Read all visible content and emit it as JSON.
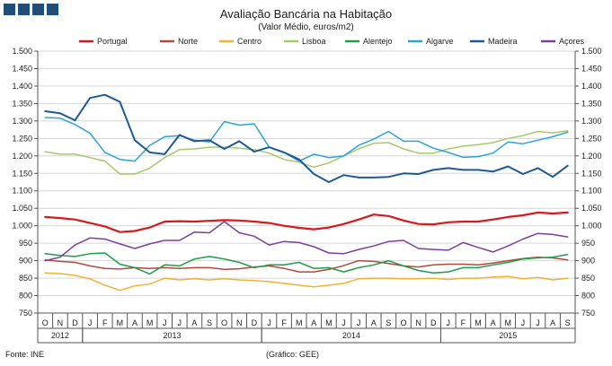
{
  "header": {
    "title": "Avaliação Bancária na Habitação",
    "subtitle": "(Valor Médio, euros/m2)"
  },
  "footer": {
    "source": "Fonte: INE",
    "credit": "(Gráfico: GEE)"
  },
  "chart_data": {
    "type": "line",
    "title": "Avaliação Bancária na Habitação",
    "subtitle": "(Valor Médio, euros/m2)",
    "ylim": [
      750,
      1500
    ],
    "y_ticks": [
      "750",
      "800",
      "850",
      "900",
      "950",
      "1.000",
      "1.050",
      "1.100",
      "1.150",
      "1.200",
      "1.250",
      "1.300",
      "1.350",
      "1.400",
      "1.450",
      "1.500"
    ],
    "y_tick_values": [
      750,
      800,
      850,
      900,
      950,
      1000,
      1050,
      1100,
      1150,
      1200,
      1250,
      1300,
      1350,
      1400,
      1450,
      1500
    ],
    "grid": "horizontal",
    "legend_position": "top",
    "x": [
      "O",
      "N",
      "D",
      "J",
      "F",
      "M",
      "A",
      "M",
      "J",
      "J",
      "A",
      "S",
      "O",
      "N",
      "D",
      "J",
      "F",
      "M",
      "A",
      "M",
      "J",
      "J",
      "A",
      "S",
      "O",
      "N",
      "D",
      "J",
      "F",
      "M",
      "A",
      "M",
      "J",
      "J",
      "A",
      "S"
    ],
    "years": [
      {
        "label": "2012",
        "start": 0,
        "end": 2
      },
      {
        "label": "2013",
        "start": 3,
        "end": 14
      },
      {
        "label": "2014",
        "start": 15,
        "end": 26
      },
      {
        "label": "2015",
        "start": 27,
        "end": 35
      }
    ],
    "series": [
      {
        "name": "Portugal",
        "color": "#d7191c",
        "width": 2.2,
        "values": [
          1025,
          1022,
          1018,
          1008,
          998,
          982,
          985,
          995,
          1012,
          1013,
          1012,
          1014,
          1016,
          1015,
          1012,
          1008,
          1000,
          994,
          990,
          995,
          1005,
          1018,
          1032,
          1028,
          1015,
          1005,
          1004,
          1010,
          1012,
          1012,
          1018,
          1025,
          1030,
          1038,
          1035,
          1038
        ]
      },
      {
        "name": "Norte",
        "color": "#b04a3c",
        "width": 1.5,
        "values": [
          902,
          898,
          895,
          885,
          878,
          876,
          880,
          878,
          880,
          878,
          880,
          880,
          875,
          877,
          882,
          885,
          878,
          868,
          868,
          875,
          886,
          900,
          898,
          892,
          885,
          882,
          888,
          890,
          890,
          888,
          893,
          900,
          906,
          910,
          908,
          902
        ]
      },
      {
        "name": "Centro",
        "color": "#f2b233",
        "width": 1.5,
        "values": [
          865,
          863,
          858,
          848,
          830,
          815,
          828,
          833,
          850,
          845,
          848,
          845,
          848,
          845,
          843,
          840,
          835,
          830,
          825,
          830,
          835,
          848,
          850,
          850,
          848,
          848,
          850,
          846,
          850,
          850,
          853,
          855,
          848,
          852,
          845,
          850
        ]
      },
      {
        "name": "Lisboa",
        "color": "#a6c96a",
        "width": 1.5,
        "values": [
          1212,
          1205,
          1205,
          1195,
          1185,
          1148,
          1148,
          1165,
          1195,
          1218,
          1220,
          1225,
          1225,
          1222,
          1218,
          1208,
          1190,
          1182,
          1168,
          1180,
          1200,
          1220,
          1236,
          1238,
          1220,
          1208,
          1208,
          1220,
          1228,
          1232,
          1238,
          1250,
          1258,
          1270,
          1266,
          1272
        ]
      },
      {
        "name": "Alentejo",
        "color": "#1e9e4a",
        "width": 1.5,
        "values": [
          920,
          915,
          912,
          920,
          922,
          890,
          880,
          862,
          888,
          885,
          905,
          912,
          905,
          895,
          880,
          888,
          888,
          895,
          878,
          880,
          868,
          880,
          888,
          900,
          885,
          872,
          865,
          868,
          880,
          880,
          888,
          895,
          905,
          908,
          910,
          918
        ]
      },
      {
        "name": "Algarve",
        "color": "#2aa3d9",
        "width": 1.5,
        "values": [
          1310,
          1308,
          1290,
          1265,
          1210,
          1190,
          1185,
          1230,
          1255,
          1258,
          1245,
          1240,
          1298,
          1288,
          1292,
          1225,
          1210,
          1185,
          1205,
          1195,
          1200,
          1230,
          1248,
          1270,
          1242,
          1242,
          1222,
          1210,
          1196,
          1198,
          1208,
          1240,
          1235,
          1245,
          1255,
          1268
        ]
      },
      {
        "name": "Madeira",
        "color": "#1c5a96",
        "width": 2,
        "values": [
          1328,
          1322,
          1302,
          1366,
          1375,
          1355,
          1245,
          1210,
          1205,
          1260,
          1242,
          1245,
          1220,
          1242,
          1212,
          1225,
          1210,
          1190,
          1148,
          1125,
          1145,
          1138,
          1138,
          1140,
          1150,
          1148,
          1160,
          1165,
          1160,
          1160,
          1155,
          1170,
          1148,
          1165,
          1140,
          1172
        ]
      },
      {
        "name": "Açores",
        "color": "#7b3f98",
        "width": 1.5,
        "values": [
          900,
          910,
          945,
          965,
          962,
          948,
          935,
          948,
          958,
          958,
          982,
          980,
          1012,
          980,
          970,
          945,
          955,
          952,
          940,
          922,
          920,
          932,
          942,
          955,
          958,
          935,
          932,
          930,
          952,
          938,
          925,
          942,
          962,
          978,
          975,
          968
        ]
      }
    ]
  }
}
